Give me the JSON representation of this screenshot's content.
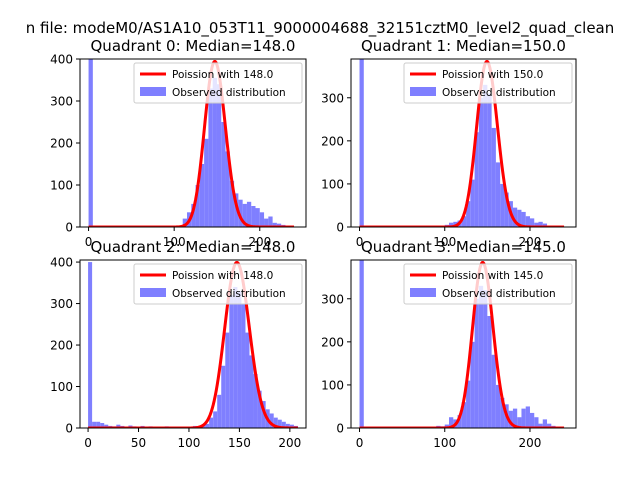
{
  "suptitle": "n file: modeM0/AS1A10_053T11_9000004688_32151cztM0_level2_quad_clean",
  "colors": {
    "histogram": "#7f7fff",
    "poisson_line": "#ff0000",
    "axes": "#000000",
    "background": "#ffffff"
  },
  "chart_data": [
    {
      "type": "bar",
      "title": "Quadrant 0: Median=148.0",
      "xlabel": "",
      "ylabel": "",
      "xlim": [
        -10,
        254
      ],
      "ylim": [
        0,
        400
      ],
      "xticks": [
        0,
        100,
        200
      ],
      "yticks": [
        0,
        100,
        200,
        300,
        400
      ],
      "grid": false,
      "legend_position": "top-right",
      "series": [
        {
          "name": "Poission with 148.0",
          "kind": "line",
          "mean": 148.0
        },
        {
          "name": "Observed distribution",
          "kind": "histogram",
          "bins": [
            [
              0,
              5,
              400
            ],
            [
              110,
              115,
              20
            ],
            [
              115,
              120,
              35
            ],
            [
              120,
              125,
              55
            ],
            [
              125,
              130,
              100
            ],
            [
              130,
              135,
              150
            ],
            [
              135,
              140,
              210
            ],
            [
              140,
              145,
              330
            ],
            [
              145,
              150,
              355
            ],
            [
              150,
              155,
              340
            ],
            [
              155,
              160,
              250
            ],
            [
              160,
              165,
              180
            ],
            [
              165,
              170,
              110
            ],
            [
              170,
              175,
              80
            ],
            [
              175,
              180,
              65
            ],
            [
              180,
              185,
              55
            ],
            [
              185,
              190,
              60
            ],
            [
              190,
              195,
              50
            ],
            [
              195,
              200,
              45
            ],
            [
              200,
              205,
              35
            ],
            [
              205,
              210,
              20
            ],
            [
              210,
              215,
              25
            ],
            [
              215,
              220,
              10
            ],
            [
              220,
              225,
              8
            ],
            [
              225,
              230,
              5
            ]
          ]
        }
      ]
    },
    {
      "type": "bar",
      "title": "Quadrant 1: Median=150.0",
      "xlabel": "",
      "ylabel": "",
      "xlim": [
        -10,
        254
      ],
      "ylim": [
        0,
        390
      ],
      "xticks": [
        0,
        100,
        200
      ],
      "yticks": [
        0,
        100,
        200,
        300
      ],
      "grid": false,
      "legend_position": "top-right",
      "series": [
        {
          "name": "Poission with 150.0",
          "kind": "line",
          "mean": 150.0
        },
        {
          "name": "Observed distribution",
          "kind": "histogram",
          "bins": [
            [
              0,
              5,
              390
            ],
            [
              95,
              100,
              3
            ],
            [
              100,
              105,
              5
            ],
            [
              105,
              110,
              10
            ],
            [
              110,
              115,
              12
            ],
            [
              115,
              120,
              15
            ],
            [
              120,
              125,
              25
            ],
            [
              125,
              130,
              60
            ],
            [
              130,
              135,
              110
            ],
            [
              135,
              140,
              220
            ],
            [
              140,
              145,
              300
            ],
            [
              145,
              150,
              330
            ],
            [
              150,
              155,
              310
            ],
            [
              155,
              160,
              230
            ],
            [
              160,
              165,
              150
            ],
            [
              165,
              170,
              100
            ],
            [
              170,
              175,
              80
            ],
            [
              175,
              180,
              60
            ],
            [
              180,
              185,
              45
            ],
            [
              185,
              190,
              40
            ],
            [
              190,
              195,
              35
            ],
            [
              195,
              200,
              25
            ],
            [
              200,
              205,
              20
            ],
            [
              205,
              210,
              10
            ],
            [
              210,
              215,
              12
            ],
            [
              215,
              220,
              8
            ]
          ]
        }
      ]
    },
    {
      "type": "bar",
      "title": "Quadrant 2: Median=148.0",
      "xlabel": "",
      "ylabel": "",
      "xlim": [
        -8,
        216
      ],
      "ylim": [
        0,
        405
      ],
      "xticks": [
        0,
        50,
        100,
        150,
        200
      ],
      "yticks": [
        0,
        100,
        200,
        300,
        400
      ],
      "grid": false,
      "legend_position": "top-right",
      "series": [
        {
          "name": "Poission with 148.0",
          "kind": "line",
          "mean": 148.0
        },
        {
          "name": "Observed distribution",
          "kind": "histogram",
          "bins": [
            [
              0,
              4,
              400
            ],
            [
              4,
              8,
              15
            ],
            [
              8,
              12,
              15
            ],
            [
              12,
              16,
              12
            ],
            [
              16,
              20,
              8
            ],
            [
              20,
              24,
              5
            ],
            [
              24,
              28,
              4
            ],
            [
              28,
              32,
              8
            ],
            [
              32,
              36,
              5
            ],
            [
              36,
              40,
              3
            ],
            [
              40,
              44,
              6
            ],
            [
              44,
              48,
              4
            ],
            [
              48,
              52,
              3
            ],
            [
              52,
              56,
              5
            ],
            [
              56,
              60,
              3
            ],
            [
              60,
              64,
              4
            ],
            [
              64,
              68,
              2
            ],
            [
              68,
              72,
              3
            ],
            [
              72,
              76,
              2
            ],
            [
              76,
              80,
              4
            ],
            [
              80,
              84,
              2
            ],
            [
              84,
              88,
              3
            ],
            [
              88,
              92,
              2
            ],
            [
              92,
              96,
              3
            ],
            [
              96,
              100,
              2
            ],
            [
              100,
              104,
              3
            ],
            [
              104,
              108,
              5
            ],
            [
              108,
              112,
              4
            ],
            [
              112,
              116,
              8
            ],
            [
              116,
              120,
              10
            ],
            [
              120,
              124,
              25
            ],
            [
              124,
              128,
              40
            ],
            [
              128,
              132,
              80
            ],
            [
              132,
              136,
              150
            ],
            [
              136,
              140,
              230
            ],
            [
              140,
              144,
              320
            ],
            [
              144,
              148,
              340
            ],
            [
              148,
              152,
              330
            ],
            [
              152,
              156,
              300
            ],
            [
              156,
              160,
              230
            ],
            [
              160,
              164,
              175
            ],
            [
              164,
              168,
              130
            ],
            [
              168,
              172,
              90
            ],
            [
              172,
              176,
              65
            ],
            [
              176,
              180,
              45
            ],
            [
              180,
              184,
              35
            ],
            [
              184,
              188,
              25
            ],
            [
              188,
              192,
              20
            ],
            [
              192,
              196,
              15
            ],
            [
              196,
              200,
              10
            ],
            [
              200,
              204,
              8
            ],
            [
              204,
              208,
              5
            ]
          ]
        }
      ]
    },
    {
      "type": "bar",
      "title": "Quadrant 3: Median=145.0",
      "xlabel": "",
      "ylabel": "",
      "xlim": [
        -10,
        254
      ],
      "ylim": [
        0,
        390
      ],
      "xticks": [
        0,
        100,
        200
      ],
      "yticks": [
        0,
        100,
        200,
        300
      ],
      "grid": false,
      "legend_position": "top-right",
      "series": [
        {
          "name": "Poission with 145.0",
          "kind": "line",
          "mean": 145.0
        },
        {
          "name": "Observed distribution",
          "kind": "histogram",
          "bins": [
            [
              0,
              5,
              390
            ],
            [
              90,
              95,
              5
            ],
            [
              95,
              100,
              4
            ],
            [
              100,
              105,
              8
            ],
            [
              105,
              110,
              25
            ],
            [
              110,
              115,
              20
            ],
            [
              115,
              120,
              30
            ],
            [
              120,
              125,
              60
            ],
            [
              125,
              130,
              110
            ],
            [
              130,
              135,
              200
            ],
            [
              135,
              140,
              300
            ],
            [
              140,
              145,
              330
            ],
            [
              145,
              150,
              320
            ],
            [
              150,
              155,
              260
            ],
            [
              155,
              160,
              170
            ],
            [
              160,
              165,
              100
            ],
            [
              165,
              170,
              70
            ],
            [
              170,
              175,
              55
            ],
            [
              175,
              180,
              40
            ],
            [
              180,
              185,
              45
            ],
            [
              185,
              190,
              25
            ],
            [
              190,
              195,
              45
            ],
            [
              195,
              200,
              50
            ],
            [
              200,
              205,
              35
            ],
            [
              205,
              210,
              25
            ],
            [
              210,
              215,
              10
            ],
            [
              215,
              220,
              20
            ],
            [
              220,
              225,
              10
            ],
            [
              225,
              230,
              5
            ]
          ]
        }
      ]
    }
  ]
}
